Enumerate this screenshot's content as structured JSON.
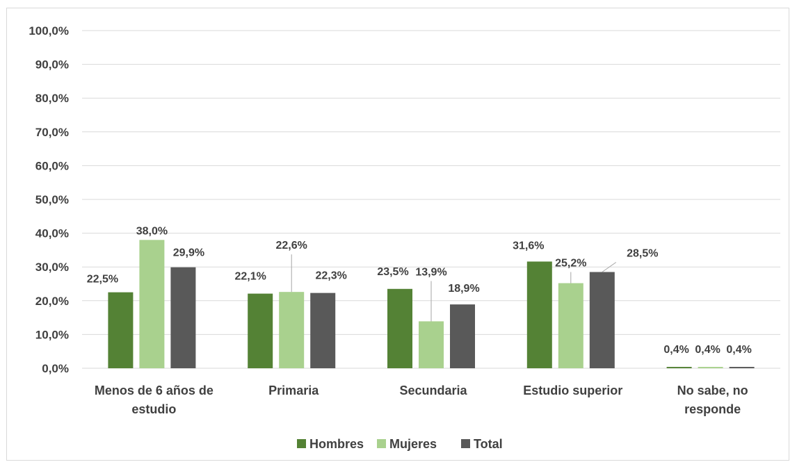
{
  "chart_data": {
    "type": "bar",
    "title": "",
    "xlabel": "",
    "ylabel": "",
    "ylim": [
      0,
      100
    ],
    "ytick_step": 10,
    "ytick_labels": [
      "0,0%",
      "10,0%",
      "20,0%",
      "30,0%",
      "40,0%",
      "50,0%",
      "60,0%",
      "70,0%",
      "80,0%",
      "90,0%",
      "100,0%"
    ],
    "grid": true,
    "legend_position": "bottom",
    "categories": [
      [
        "Menos de 6 años de",
        "estudio"
      ],
      [
        "Primaria"
      ],
      [
        "Secundaria"
      ],
      [
        "Estudio superior"
      ],
      [
        "No sabe, no",
        "responde"
      ]
    ],
    "series": [
      {
        "name": "Hombres",
        "color": "#548235",
        "values": [
          22.5,
          22.1,
          23.5,
          31.6,
          0.4
        ],
        "labels": [
          "22,5%",
          "22,1%",
          "23,5%",
          "31,6%",
          "0,4%"
        ]
      },
      {
        "name": "Mujeres",
        "color": "#a9d18e",
        "values": [
          38.0,
          22.6,
          13.9,
          25.2,
          0.4
        ],
        "labels": [
          "38,0%",
          "22,6%",
          "13,9%",
          "25,2%",
          "0,4%"
        ]
      },
      {
        "name": "Total",
        "color": "#595959",
        "values": [
          29.9,
          22.3,
          18.9,
          28.5,
          0.4
        ],
        "labels": [
          "29,9%",
          "22,3%",
          "18,9%",
          "28,5%",
          "0,4%"
        ]
      }
    ]
  }
}
